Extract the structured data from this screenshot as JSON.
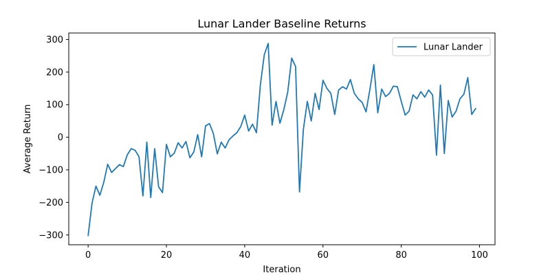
{
  "chart_data": {
    "type": "line",
    "title": "Lunar Lander Baseline Returns",
    "xlabel": "Iteration",
    "ylabel": "Average Return",
    "xlim": [
      -4.95,
      103.95
    ],
    "ylim": [
      -330,
      320
    ],
    "xticks": [
      0,
      20,
      40,
      60,
      80,
      100
    ],
    "yticks": [
      -300,
      -200,
      -100,
      0,
      100,
      200,
      300
    ],
    "xtick_labels": [
      "0",
      "20",
      "40",
      "60",
      "80",
      "100"
    ],
    "ytick_labels": [
      "−300",
      "−200",
      "−100",
      "0",
      "100",
      "200",
      "300"
    ],
    "grid": false,
    "legend_position": "upper-right",
    "series": [
      {
        "name": "Lunar Lander",
        "color": "#1f77b4",
        "x": [
          0,
          1,
          2,
          3,
          4,
          5,
          6,
          7,
          8,
          9,
          10,
          11,
          12,
          13,
          14,
          15,
          16,
          17,
          18,
          19,
          20,
          21,
          22,
          23,
          24,
          25,
          26,
          27,
          28,
          29,
          30,
          31,
          32,
          33,
          34,
          35,
          36,
          37,
          38,
          39,
          40,
          41,
          42,
          43,
          44,
          45,
          46,
          47,
          48,
          49,
          50,
          51,
          52,
          53,
          54,
          55,
          56,
          57,
          58,
          59,
          60,
          61,
          62,
          63,
          64,
          65,
          66,
          67,
          68,
          69,
          70,
          71,
          72,
          73,
          74,
          75,
          76,
          77,
          78,
          79,
          80,
          81,
          82,
          83,
          84,
          85,
          86,
          87,
          88,
          89,
          90,
          91,
          92,
          93,
          94,
          95,
          96,
          97,
          98,
          99
        ],
        "y": [
          -302,
          -202,
          -150,
          -178,
          -138,
          -83,
          -108,
          -96,
          -84,
          -90,
          -54,
          -35,
          -40,
          -60,
          -180,
          -15,
          -185,
          -35,
          -152,
          -170,
          -22,
          -60,
          -49,
          -17,
          -33,
          -13,
          -63,
          -45,
          8,
          -60,
          35,
          42,
          11,
          -51,
          -15,
          -33,
          -8,
          4,
          14,
          33,
          68,
          19,
          40,
          14,
          160,
          253,
          288,
          37,
          110,
          43,
          85,
          139,
          243,
          217,
          -168,
          25,
          110,
          50,
          135,
          85,
          175,
          150,
          135,
          70,
          145,
          155,
          148,
          177,
          135,
          118,
          107,
          78,
          148,
          223,
          75,
          148,
          125,
          135,
          157,
          155,
          110,
          68,
          80,
          130,
          118,
          140,
          123,
          145,
          130,
          -55,
          160,
          -50,
          113,
          62,
          80,
          118,
          132,
          183,
          70,
          88
        ]
      }
    ]
  }
}
